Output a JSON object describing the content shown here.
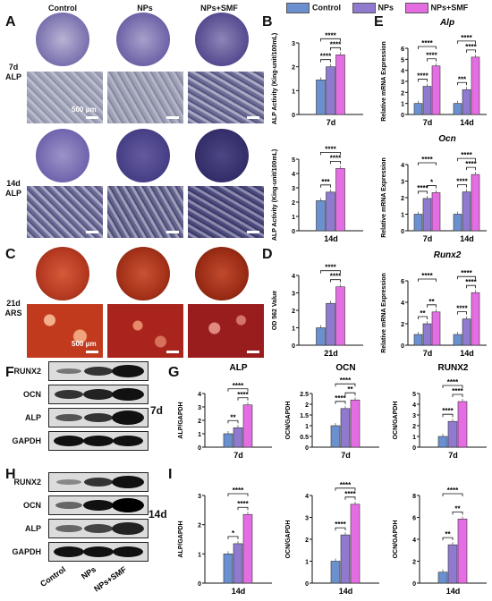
{
  "panel_letters": {
    "A": "A",
    "B": "B",
    "C": "C",
    "D": "D",
    "E": "E",
    "F": "F",
    "G": "G",
    "H": "H",
    "I": "I"
  },
  "image_columns": [
    "Control",
    "NPs",
    "NPs+SMF"
  ],
  "row_labels": {
    "alp7": "7d\nALP",
    "alp14": "14d\nALP",
    "ars21": "21d\nARS"
  },
  "scale_bar": "500 μm",
  "legend": [
    {
      "label": "Control",
      "color": "#6b90cf"
    },
    {
      "label": "NPs",
      "color": "#8f7ad0"
    },
    {
      "label": "NPs+SMF",
      "color": "#e56de3"
    }
  ],
  "western": {
    "bands": [
      "RUNX2",
      "OCN",
      "ALP",
      "GAPDH"
    ],
    "time_7d": "7d",
    "time_14d": "14d",
    "xlabels": [
      "Control",
      "NPs",
      "NPs+SMF"
    ]
  },
  "chart_data": [
    {
      "id": "B1",
      "type": "bar",
      "categories": [
        "7d"
      ],
      "ylabel": "ALP Activity (King-unit/100mL)",
      "ylim": [
        0,
        3
      ],
      "yticks": [
        0,
        1,
        2,
        3
      ],
      "series": [
        {
          "name": "Control",
          "values": [
            1.45
          ]
        },
        {
          "name": "NPs",
          "values": [
            2.0
          ]
        },
        {
          "name": "NPs+SMF",
          "values": [
            2.5
          ]
        }
      ],
      "sig": [
        {
          "from": 0,
          "to": 1,
          "label": "****"
        },
        {
          "from": 1,
          "to": 2,
          "label": "****"
        },
        {
          "from": 0,
          "to": 2,
          "label": "****"
        }
      ]
    },
    {
      "id": "B2",
      "type": "bar",
      "categories": [
        "14d"
      ],
      "ylabel": "ALP Activity (King-unit/100mL)",
      "ylim": [
        0,
        5
      ],
      "yticks": [
        0,
        1,
        2,
        3,
        4,
        5
      ],
      "series": [
        {
          "name": "Control",
          "values": [
            2.1
          ]
        },
        {
          "name": "NPs",
          "values": [
            2.7
          ]
        },
        {
          "name": "NPs+SMF",
          "values": [
            4.35
          ]
        }
      ],
      "sig": [
        {
          "from": 0,
          "to": 1,
          "label": "***"
        },
        {
          "from": 1,
          "to": 2,
          "label": "****"
        },
        {
          "from": 0,
          "to": 2,
          "label": "****"
        }
      ]
    },
    {
      "id": "D",
      "type": "bar",
      "categories": [
        "21d"
      ],
      "ylabel": "OD 562 Value",
      "ylim": [
        0,
        4
      ],
      "yticks": [
        0,
        1,
        2,
        3,
        4
      ],
      "series": [
        {
          "name": "Control",
          "values": [
            1.0
          ]
        },
        {
          "name": "NPs",
          "values": [
            2.4
          ]
        },
        {
          "name": "NPs+SMF",
          "values": [
            3.35
          ]
        }
      ],
      "sig": [
        {
          "from": 1,
          "to": 2,
          "label": "****"
        },
        {
          "from": 0,
          "to": 2,
          "label": "****"
        }
      ]
    },
    {
      "id": "E1",
      "type": "bar",
      "title": "Alp",
      "categories": [
        "7d",
        "14d"
      ],
      "ylabel": "Relative mRNA Expression",
      "ylim": [
        0,
        6
      ],
      "yticks": [
        0,
        1,
        2,
        3,
        4,
        5,
        6
      ],
      "series": [
        {
          "name": "Control",
          "values": [
            1.0,
            1.0
          ]
        },
        {
          "name": "NPs",
          "values": [
            2.55,
            2.25
          ]
        },
        {
          "name": "NPs+SMF",
          "values": [
            4.4,
            5.2
          ]
        }
      ],
      "sig": [
        {
          "g": 0,
          "from": 0,
          "to": 1,
          "label": "****"
        },
        {
          "g": 0,
          "from": 1,
          "to": 2,
          "label": "****"
        },
        {
          "g": 0,
          "from": 0,
          "to": 2,
          "label": "****"
        },
        {
          "g": 1,
          "from": 0,
          "to": 1,
          "label": "***"
        },
        {
          "g": 1,
          "from": 1,
          "to": 2,
          "label": "****"
        },
        {
          "g": 1,
          "from": 0,
          "to": 2,
          "label": "****"
        }
      ]
    },
    {
      "id": "E2",
      "type": "bar",
      "title": "Ocn",
      "categories": [
        "7d",
        "14d"
      ],
      "ylabel": "Relative mRNA Expression",
      "ylim": [
        0,
        4
      ],
      "yticks": [
        0,
        1,
        2,
        3,
        4
      ],
      "series": [
        {
          "name": "Control",
          "values": [
            1.0,
            1.0
          ]
        },
        {
          "name": "NPs",
          "values": [
            1.95,
            2.35
          ]
        },
        {
          "name": "NPs+SMF",
          "values": [
            2.3,
            3.4
          ]
        }
      ],
      "sig": [
        {
          "g": 0,
          "from": 0,
          "to": 1,
          "label": "****"
        },
        {
          "g": 0,
          "from": 1,
          "to": 2,
          "label": "*"
        },
        {
          "g": 0,
          "from": 0,
          "to": 2,
          "label": "****"
        },
        {
          "g": 1,
          "from": 0,
          "to": 1,
          "label": "****"
        },
        {
          "g": 1,
          "from": 1,
          "to": 2,
          "label": "****"
        },
        {
          "g": 1,
          "from": 0,
          "to": 2,
          "label": "****"
        }
      ]
    },
    {
      "id": "E3",
      "type": "bar",
      "title": "Runx2",
      "categories": [
        "7d",
        "14d"
      ],
      "ylabel": "Relative mRNA Expression",
      "ylim": [
        0,
        6
      ],
      "yticks": [
        0,
        2,
        4,
        6
      ],
      "series": [
        {
          "name": "Control",
          "values": [
            1.0,
            1.0
          ]
        },
        {
          "name": "NPs",
          "values": [
            2.0,
            2.45
          ]
        },
        {
          "name": "NPs+SMF",
          "values": [
            3.1,
            4.9
          ]
        }
      ],
      "sig": [
        {
          "g": 0,
          "from": 0,
          "to": 1,
          "label": "**"
        },
        {
          "g": 0,
          "from": 1,
          "to": 2,
          "label": "**"
        },
        {
          "g": 0,
          "from": 0,
          "to": 2,
          "label": "****"
        },
        {
          "g": 1,
          "from": 0,
          "to": 1,
          "label": "****"
        },
        {
          "g": 1,
          "from": 1,
          "to": 2,
          "label": "****"
        },
        {
          "g": 1,
          "from": 0,
          "to": 2,
          "label": "****"
        }
      ]
    },
    {
      "id": "G1",
      "type": "bar",
      "title": "ALP",
      "categories": [
        "7d"
      ],
      "ylabel": "ALP/GAPDH",
      "ylim": [
        0,
        4
      ],
      "yticks": [
        0,
        1,
        2,
        3,
        4
      ],
      "series": [
        {
          "name": "Control",
          "values": [
            1.0
          ]
        },
        {
          "name": "NPs",
          "values": [
            1.45
          ]
        },
        {
          "name": "NPs+SMF",
          "values": [
            3.15
          ]
        }
      ],
      "sig": [
        {
          "from": 0,
          "to": 1,
          "label": "**"
        },
        {
          "from": 1,
          "to": 2,
          "label": "****"
        },
        {
          "from": 0,
          "to": 2,
          "label": "****"
        }
      ]
    },
    {
      "id": "G2",
      "type": "bar",
      "title": "OCN",
      "categories": [
        "7d"
      ],
      "ylabel": "OCN/GAPDH",
      "ylim": [
        0,
        2.5
      ],
      "yticks": [
        0,
        0.5,
        1.0,
        1.5,
        2.0,
        2.5
      ],
      "series": [
        {
          "name": "Control",
          "values": [
            1.0
          ]
        },
        {
          "name": "NPs",
          "values": [
            1.8
          ]
        },
        {
          "name": "NPs+SMF",
          "values": [
            2.2
          ]
        }
      ],
      "sig": [
        {
          "from": 0,
          "to": 1,
          "label": "****"
        },
        {
          "from": 1,
          "to": 2,
          "label": "**"
        },
        {
          "from": 0,
          "to": 2,
          "label": "****"
        }
      ]
    },
    {
      "id": "G3",
      "type": "bar",
      "title": "RUNX2",
      "categories": [
        "7d"
      ],
      "ylabel": "OCN/GAPDH",
      "ylim": [
        0,
        5
      ],
      "yticks": [
        0,
        1,
        2,
        3,
        4,
        5
      ],
      "series": [
        {
          "name": "Control",
          "values": [
            1.0
          ]
        },
        {
          "name": "NPs",
          "values": [
            2.4
          ]
        },
        {
          "name": "NPs+SMF",
          "values": [
            4.25
          ]
        }
      ],
      "sig": [
        {
          "from": 0,
          "to": 1,
          "label": "****"
        },
        {
          "from": 1,
          "to": 2,
          "label": "****"
        },
        {
          "from": 0,
          "to": 2,
          "label": "****"
        }
      ]
    },
    {
      "id": "I1",
      "type": "bar",
      "categories": [
        "14d"
      ],
      "ylabel": "ALP/GAPDH",
      "ylim": [
        0,
        3
      ],
      "yticks": [
        0,
        1,
        2,
        3
      ],
      "series": [
        {
          "name": "Control",
          "values": [
            1.0
          ]
        },
        {
          "name": "NPs",
          "values": [
            1.35
          ]
        },
        {
          "name": "NPs+SMF",
          "values": [
            2.35
          ]
        }
      ],
      "sig": [
        {
          "from": 0,
          "to": 1,
          "label": "*"
        },
        {
          "from": 1,
          "to": 2,
          "label": "****"
        },
        {
          "from": 0,
          "to": 2,
          "label": "****"
        }
      ]
    },
    {
      "id": "I2",
      "type": "bar",
      "categories": [
        "14d"
      ],
      "ylabel": "OCN/GAPDH",
      "ylim": [
        0,
        4
      ],
      "yticks": [
        0,
        1,
        2,
        3,
        4
      ],
      "series": [
        {
          "name": "Control",
          "values": [
            1.0
          ]
        },
        {
          "name": "NPs",
          "values": [
            2.2
          ]
        },
        {
          "name": "NPs+SMF",
          "values": [
            3.6
          ]
        }
      ],
      "sig": [
        {
          "from": 0,
          "to": 1,
          "label": "****"
        },
        {
          "from": 1,
          "to": 2,
          "label": "****"
        },
        {
          "from": 0,
          "to": 2,
          "label": "****"
        }
      ]
    },
    {
      "id": "I3",
      "type": "bar",
      "categories": [
        "14d"
      ],
      "ylabel": "OCN/GAPDH",
      "ylim": [
        0,
        8
      ],
      "yticks": [
        0,
        2,
        4,
        6,
        8
      ],
      "series": [
        {
          "name": "Control",
          "values": [
            1.0
          ]
        },
        {
          "name": "NPs",
          "values": [
            3.5
          ]
        },
        {
          "name": "NPs+SMF",
          "values": [
            5.85
          ]
        }
      ],
      "sig": [
        {
          "from": 0,
          "to": 1,
          "label": "**"
        },
        {
          "from": 1,
          "to": 2,
          "label": "**"
        },
        {
          "from": 0,
          "to": 2,
          "label": "****"
        }
      ]
    }
  ]
}
